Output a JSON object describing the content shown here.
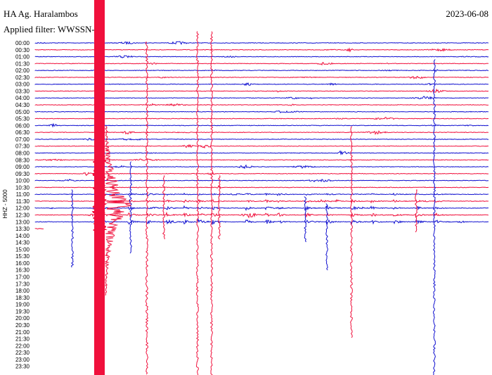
{
  "header": {
    "station": "HA Ag. Haralambos",
    "filter": "Applied filter: WWSSN-",
    "date": "2023-06-08"
  },
  "axis_label": "HHZ - 5000",
  "times": [
    "00:00",
    "00:30",
    "01:00",
    "01:30",
    "02:00",
    "02:30",
    "03:00",
    "03:30",
    "04:00",
    "04:30",
    "05:00",
    "05:30",
    "06:00",
    "06:30",
    "07:00",
    "07:30",
    "08:00",
    "08:30",
    "09:00",
    "09:30",
    "10:00",
    "10:30",
    "11:00",
    "11:30",
    "12:00",
    "12:30",
    "13:00",
    "13:30",
    "14:00",
    "14:30",
    "15:00",
    "15:30",
    "16:00",
    "16:30",
    "17:00",
    "17:30",
    "18:00",
    "18:30",
    "19:00",
    "19:30",
    "20:00",
    "20:30",
    "21:00",
    "21:30",
    "22:00",
    "22:30",
    "23:00",
    "23:30"
  ]
}
